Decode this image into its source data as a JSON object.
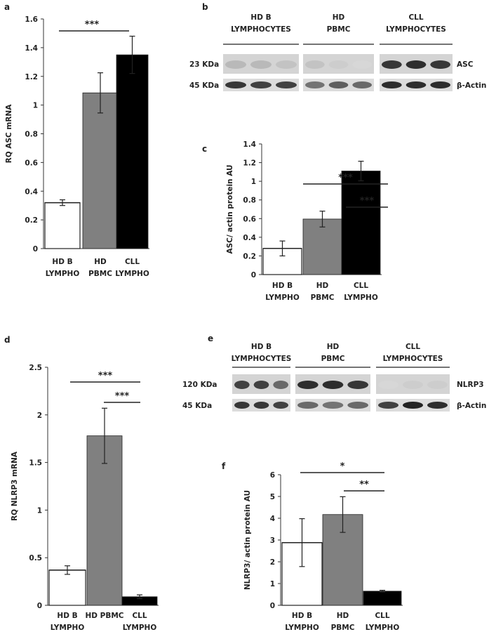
{
  "figure": {
    "panels": {
      "a": "a",
      "b": "b",
      "c": "c",
      "d": "d",
      "e": "e",
      "f": "f"
    }
  },
  "blots": {
    "b": {
      "groups": [
        {
          "line1": "HD B",
          "line2": "LYMPHOCYTES"
        },
        {
          "line1": "HD",
          "line2": "PBMC"
        },
        {
          "line1": "CLL",
          "line2": "LYMPHOCYTES"
        }
      ],
      "rows": [
        {
          "size": "23 KDa",
          "protein": "ASC"
        },
        {
          "size": "45 KDa",
          "protein": "β-Actin"
        }
      ]
    },
    "e": {
      "groups": [
        {
          "line1": "HD B",
          "line2": "LYMPHOCYTES"
        },
        {
          "line1": "HD",
          "line2": "PBMC"
        },
        {
          "line1": "CLL",
          "line2": "LYMPHOCYTES"
        }
      ],
      "rows": [
        {
          "size": "120 KDa",
          "protein": "NLRP3"
        },
        {
          "size": "45 KDa",
          "protein": "β-Actin"
        }
      ]
    }
  },
  "colors": {
    "bar1": "#ffffff",
    "bar2": "#808080",
    "bar3": "#000000",
    "axis": "#333333"
  },
  "chart_data": [
    {
      "panel": "a",
      "type": "bar",
      "ylabel": "RQ ASC mRNA",
      "ylim": [
        0,
        1.6
      ],
      "yticks": [
        "0",
        "0.2",
        "0.4",
        "0.6",
        "0.8",
        "1",
        "1.2",
        "1.4",
        "1.6"
      ],
      "categories": [
        {
          "line1": "HD  B",
          "line2": "LYMPHO"
        },
        {
          "line1": "HD",
          "line2": "PBMC"
        },
        {
          "line1": "CLL",
          "line2": "LYMPHO"
        }
      ],
      "values": [
        0.32,
        1.085,
        1.35
      ],
      "errors": [
        0.02,
        0.14,
        0.13
      ],
      "significance": [
        {
          "from": 0,
          "to": 2,
          "label": "***"
        }
      ]
    },
    {
      "panel": "c",
      "type": "bar",
      "ylabel": "ASC/ actin protein AU",
      "ylim": [
        0,
        1.4
      ],
      "yticks": [
        "0",
        "0.2",
        "0.4",
        "0.6",
        "0.8",
        "1",
        "1.2",
        "1.4"
      ],
      "categories": [
        {
          "line1": "HD B",
          "line2": "LYMPHO"
        },
        {
          "line1": "HD",
          "line2": "PBMC"
        },
        {
          "line1": "CLL",
          "line2": "LYMPHO"
        }
      ],
      "values": [
        0.28,
        0.595,
        1.11
      ],
      "errors": [
        0.08,
        0.085,
        0.105
      ],
      "significance": [
        {
          "from": 0,
          "to": 2,
          "label": "***"
        },
        {
          "from": 1,
          "to": 2,
          "label": "***"
        }
      ]
    },
    {
      "panel": "d",
      "type": "bar",
      "ylabel": "RQ NLRP3 mRNA",
      "ylim": [
        0,
        2.5
      ],
      "yticks": [
        "0",
        "0.5",
        "1",
        "1.5",
        "2",
        "2.5"
      ],
      "categories": [
        {
          "line1": "HD B",
          "line2": "LYMPHO"
        },
        {
          "line1": "HD PBMC",
          "line2": ""
        },
        {
          "line1": "CLL",
          "line2": "LYMPHO"
        }
      ],
      "values": [
        0.37,
        1.78,
        0.09
      ],
      "errors": [
        0.045,
        0.29,
        0.02
      ],
      "significance": [
        {
          "from": 0,
          "to": 2,
          "label": "***"
        },
        {
          "from": 1,
          "to": 2,
          "label": "***"
        }
      ]
    },
    {
      "panel": "f",
      "type": "bar",
      "ylabel": "NLRP3/ actin protein AU",
      "ylim": [
        0,
        6
      ],
      "yticks": [
        "0",
        "1",
        "2",
        "3",
        "4",
        "5",
        "6"
      ],
      "categories": [
        {
          "line1": "HD B",
          "line2": "LYMPHO"
        },
        {
          "line1": "HD",
          "line2": "PBMC"
        },
        {
          "line1": "CLL",
          "line2": "LYMPHO"
        }
      ],
      "values": [
        2.88,
        4.17,
        0.65
      ],
      "errors": [
        1.1,
        0.82,
        0.04
      ],
      "significance": [
        {
          "from": 0,
          "to": 2,
          "label": "*"
        },
        {
          "from": 1,
          "to": 2,
          "label": "**"
        }
      ]
    }
  ]
}
